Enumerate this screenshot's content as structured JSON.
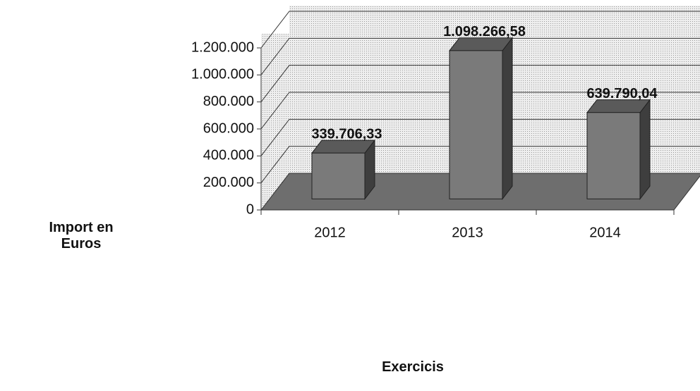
{
  "chart_data": {
    "type": "bar3d",
    "ylabel": "Import en Euros",
    "xlabel": "Exercicis",
    "categories": [
      "2012",
      "2013",
      "2014"
    ],
    "values": [
      339706.33,
      1098266.58,
      639790.04
    ],
    "value_labels": [
      "339.706,33",
      "1.098.266,58",
      "639.790,04"
    ],
    "color": "#7a7a7a",
    "ylim": [
      0,
      1200000
    ],
    "yticks": [
      0,
      {
        "value": 200000,
        "label": "200.000"
      },
      {
        "value": 400000,
        "label": "400.000"
      },
      {
        "value": 600000,
        "label": "600.000"
      },
      {
        "value": 800000,
        "label": "800.000"
      },
      {
        "value": 1000000,
        "label": "1.000.000"
      },
      {
        "value": 1200000,
        "label": "1.200.000"
      }
    ],
    "grid": true
  }
}
